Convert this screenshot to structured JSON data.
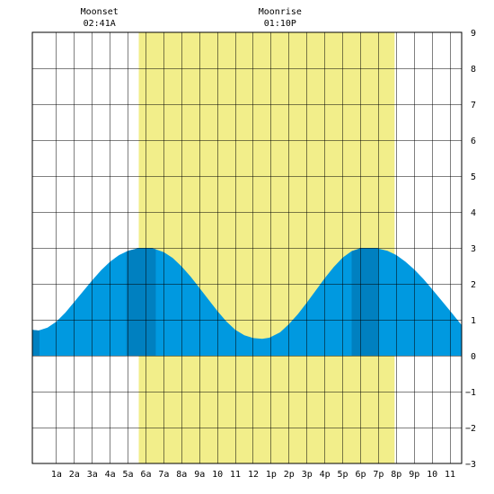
{
  "chart_data": {
    "type": "area",
    "x_unit": "hours",
    "xlim": [
      -0.35,
      23.65
    ],
    "ylim": [
      -3,
      9
    ],
    "grid": true,
    "daylight": [
      5.6,
      19.9
    ],
    "y_ticks": [
      -3,
      -2,
      -1,
      0,
      1,
      2,
      3,
      4,
      5,
      6,
      7,
      8,
      9
    ],
    "x_ticks": [
      {
        "x": 1,
        "label": "1a"
      },
      {
        "x": 2,
        "label": "2a"
      },
      {
        "x": 3,
        "label": "3a"
      },
      {
        "x": 4,
        "label": "4a"
      },
      {
        "x": 5,
        "label": "5a"
      },
      {
        "x": 6,
        "label": "6a"
      },
      {
        "x": 7,
        "label": "7a"
      },
      {
        "x": 8,
        "label": "8a"
      },
      {
        "x": 9,
        "label": "9a"
      },
      {
        "x": 10,
        "label": "10"
      },
      {
        "x": 11,
        "label": "11"
      },
      {
        "x": 12,
        "label": "12"
      },
      {
        "x": 13,
        "label": "1p"
      },
      {
        "x": 14,
        "label": "2p"
      },
      {
        "x": 15,
        "label": "3p"
      },
      {
        "x": 16,
        "label": "4p"
      },
      {
        "x": 17,
        "label": "5p"
      },
      {
        "x": 18,
        "label": "6p"
      },
      {
        "x": 19,
        "label": "7p"
      },
      {
        "x": 20,
        "label": "8p"
      },
      {
        "x": 21,
        "label": "9p"
      },
      {
        "x": 22,
        "label": "10"
      },
      {
        "x": 23,
        "label": "11"
      }
    ],
    "tide": {
      "x": [
        -0.35,
        0,
        0.5,
        1,
        1.5,
        2,
        2.5,
        3,
        3.5,
        4,
        4.5,
        5,
        5.5,
        6,
        6.3,
        6.5,
        7,
        7.5,
        8,
        8.5,
        9,
        9.5,
        10,
        10.5,
        11,
        11.5,
        12,
        12.5,
        12.9,
        13.5,
        14,
        14.5,
        15,
        15.5,
        16,
        16.5,
        17,
        17.5,
        18,
        18.5,
        18.9,
        19.5,
        20,
        20.5,
        21,
        21.5,
        22,
        22.5,
        23,
        23.65
      ],
      "y": [
        0.72,
        0.7,
        0.78,
        0.95,
        1.2,
        1.5,
        1.8,
        2.1,
        2.38,
        2.62,
        2.8,
        2.92,
        2.98,
        3.0,
        2.99,
        2.97,
        2.88,
        2.72,
        2.48,
        2.2,
        1.88,
        1.56,
        1.24,
        0.95,
        0.72,
        0.57,
        0.49,
        0.47,
        0.5,
        0.65,
        0.88,
        1.16,
        1.48,
        1.82,
        2.16,
        2.47,
        2.73,
        2.91,
        2.99,
        3.0,
        2.99,
        2.92,
        2.8,
        2.62,
        2.4,
        2.14,
        1.85,
        1.55,
        1.25,
        0.85
      ]
    },
    "dark_bands": [
      [
        -0.35,
        0.05
      ],
      [
        4.9,
        6.55
      ],
      [
        17.5,
        19.0
      ]
    ],
    "annotations": [
      {
        "x": 3.4,
        "title": "Moonset",
        "time": "02:41A"
      },
      {
        "x": 13.5,
        "title": "Moonrise",
        "time": "01:10P"
      }
    ],
    "colors": {
      "daylight": "#f2ee8a",
      "tide": "#0099e0",
      "tide_dark": "#0080c0",
      "grid": "#000000",
      "background": "#ffffff"
    }
  }
}
